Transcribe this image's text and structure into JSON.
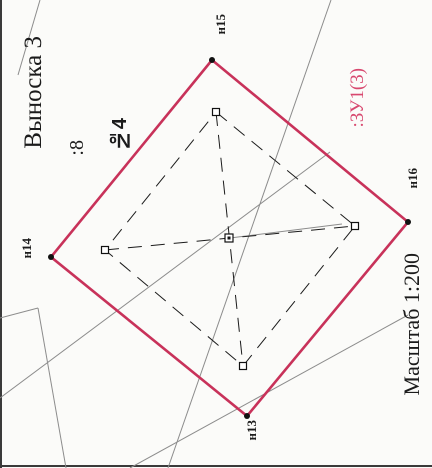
{
  "title": "Выноска 3",
  "sublabel": ":8",
  "parcel_number": "№4",
  "parcel_code": ":ЗУ1(3)",
  "scale": "Масштаб 1:200",
  "points": {
    "h13": "н13",
    "h14": "н14",
    "h15": "н15",
    "h16": "н16"
  },
  "colors": {
    "boundary": "#c8325a",
    "parcel_label": "#d8486f",
    "background_lines": "#8c8c8c",
    "inner_lines": "#1b1b1b"
  }
}
